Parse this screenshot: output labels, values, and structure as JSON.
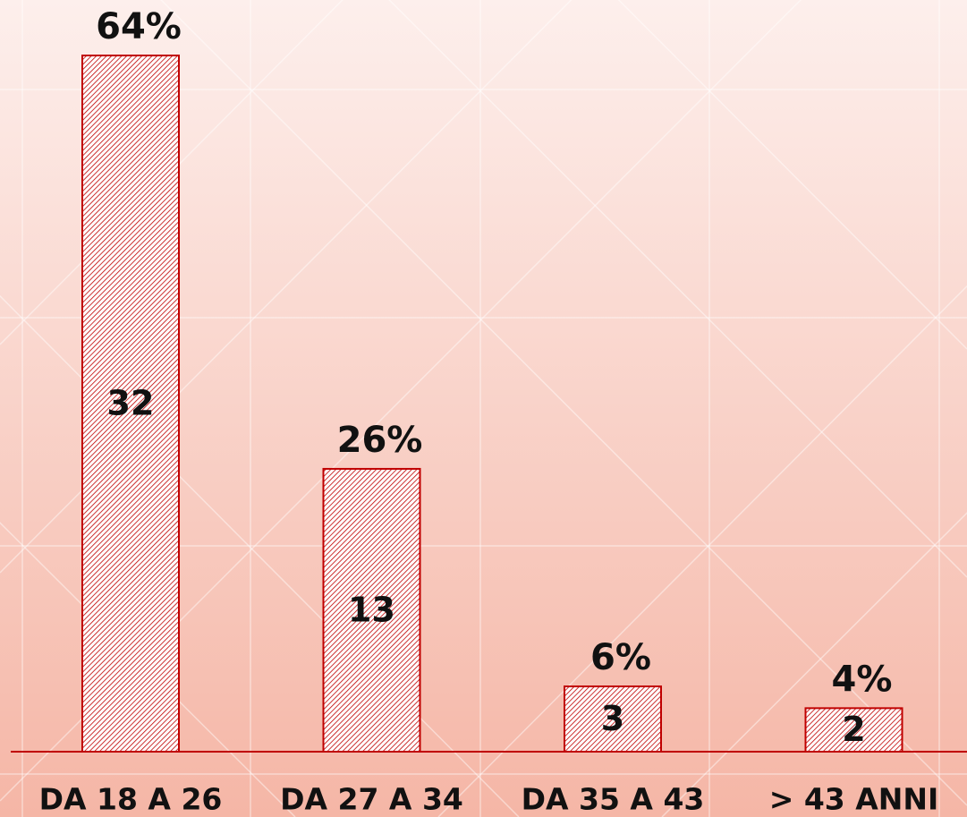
{
  "chart_data": {
    "type": "bar",
    "categories": [
      "DA 18 A 26",
      "DA 27 A 34",
      "DA 35 A 43",
      "> 43 ANNI"
    ],
    "values": [
      32,
      13,
      3,
      2
    ],
    "shares": [
      64,
      26,
      6,
      4
    ],
    "share_labels": [
      "64%",
      "26%",
      "6%",
      "4%"
    ],
    "color": "#c00000"
  }
}
